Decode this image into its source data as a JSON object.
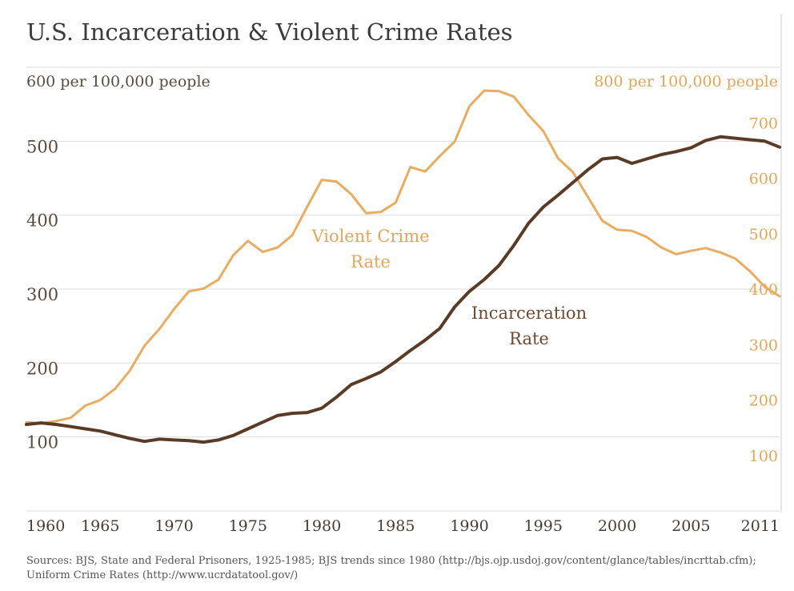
{
  "colors": {
    "incarceration": "#5a3b26",
    "violent_crime": "#e8ad61",
    "grid": "#dddddd"
  },
  "chart_data": {
    "type": "line",
    "title": "U.S. Incarceration & Violent Crime Rates",
    "y_left_unit": "600 per 100,000 people",
    "y_right_unit": "800 per 100,000 people",
    "y_left_ticks": [
      "500",
      "400",
      "300",
      "200",
      "100"
    ],
    "y_right_ticks": [
      "700",
      "600",
      "500",
      "400",
      "300",
      "200",
      "100"
    ],
    "x_ticks": [
      "1960",
      "1965",
      "1970",
      "1975",
      "1980",
      "1985",
      "1990",
      "1995",
      "2000",
      "2005",
      "2011"
    ],
    "ylim_left": [
      0,
      600
    ],
    "ylim_right": [
      0,
      800
    ],
    "xlim": [
      1960,
      2011
    ],
    "grid": true,
    "series": [
      {
        "name": "Incarceration Rate",
        "axis": "left",
        "x": [
          1960,
          1961,
          1962,
          1963,
          1964,
          1965,
          1966,
          1967,
          1968,
          1969,
          1970,
          1971,
          1972,
          1973,
          1974,
          1975,
          1976,
          1977,
          1978,
          1979,
          1980,
          1981,
          1982,
          1983,
          1984,
          1985,
          1986,
          1987,
          1988,
          1989,
          1990,
          1991,
          1992,
          1993,
          1994,
          1995,
          1996,
          1997,
          1998,
          1999,
          2000,
          2001,
          2002,
          2003,
          2004,
          2005,
          2006,
          2007,
          2008,
          2009,
          2010,
          2011
        ],
        "values": [
          117,
          119,
          117,
          114,
          111,
          108,
          103,
          98,
          94,
          97,
          96,
          95,
          93,
          96,
          102,
          111,
          120,
          129,
          132,
          133,
          139,
          154,
          171,
          179,
          188,
          202,
          217,
          231,
          247,
          276,
          297,
          313,
          332,
          359,
          389,
          411,
          427,
          444,
          461,
          476,
          478,
          470,
          476,
          482,
          486,
          491,
          501,
          506,
          504,
          502,
          500,
          492
        ]
      },
      {
        "name": "Violent Crime Rate",
        "axis": "right",
        "x": [
          1960,
          1961,
          1962,
          1963,
          1964,
          1965,
          1966,
          1967,
          1968,
          1969,
          1970,
          1971,
          1972,
          1973,
          1974,
          1975,
          1976,
          1977,
          1978,
          1979,
          1980,
          1981,
          1982,
          1983,
          1984,
          1985,
          1986,
          1987,
          1988,
          1989,
          1990,
          1991,
          1992,
          1993,
          1994,
          1995,
          1996,
          1997,
          1998,
          1999,
          2000,
          2001,
          2002,
          2003,
          2004,
          2005,
          2006,
          2007,
          2008,
          2009,
          2010,
          2011
        ],
        "values": [
          160,
          158,
          162,
          168,
          190,
          200,
          220,
          253,
          298,
          328,
          364,
          396,
          401,
          417,
          461,
          487,
          467,
          475,
          497,
          548,
          597,
          594,
          571,
          537,
          539,
          556,
          620,
          612,
          640,
          666,
          730,
          758,
          757,
          747,
          714,
          685,
          636,
          611,
          567,
          523,
          507,
          505,
          494,
          475,
          463,
          469,
          474,
          466,
          455,
          432,
          404,
          387
        ]
      }
    ],
    "annotations": [
      {
        "text": [
          "Violent Crime",
          "Rate"
        ],
        "series": "Violent Crime Rate"
      },
      {
        "text": [
          "Incarceration",
          "Rate"
        ],
        "series": "Incarceration Rate"
      }
    ]
  },
  "footer": {
    "sources_line1": "Sources: BJS, State and Federal Prisoners, 1925-1985; BJS trends since 1980 (http://bjs.ojp.usdoj.gov/content/glance/tables/incrttab.cfm);",
    "sources_line2": "Uniform Crime Rates (http://www.ucrdatatool.gov/)"
  }
}
